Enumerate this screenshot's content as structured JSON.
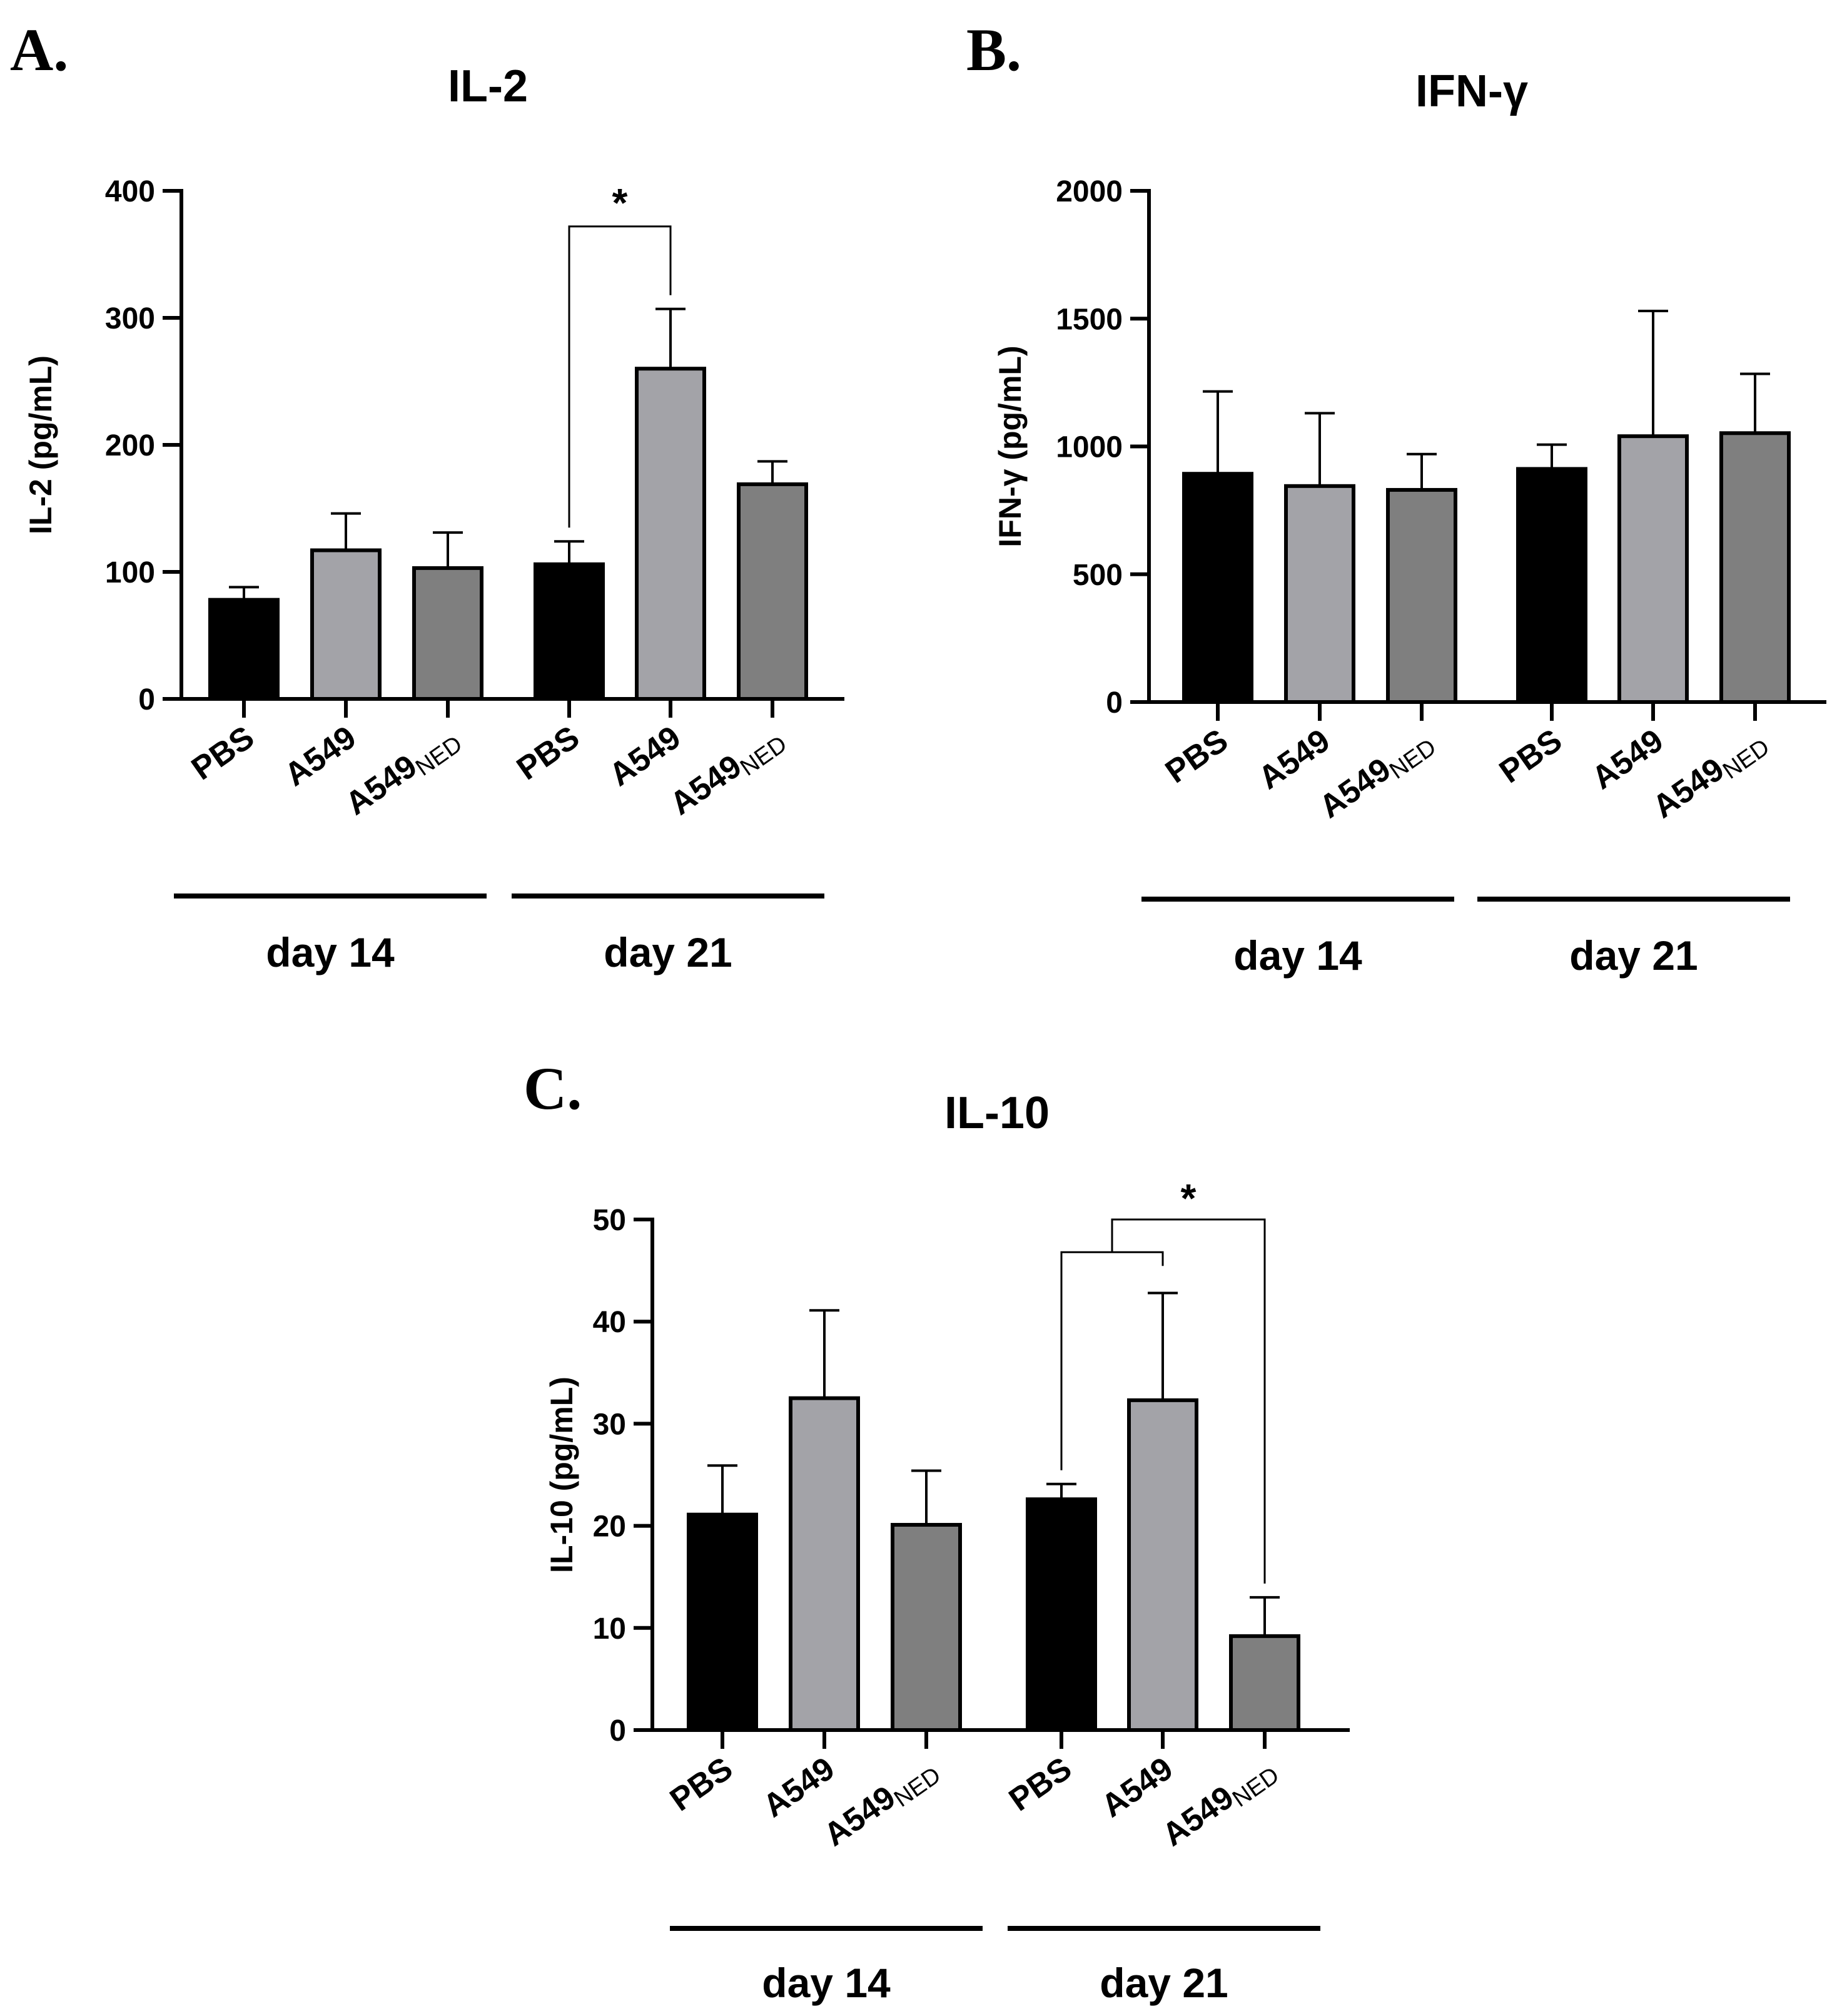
{
  "chart_data": [
    {
      "type": "bar",
      "panel": "A.",
      "title": "IL-2",
      "ylabel": "IL-2 (pg/mL)",
      "xlabel": "",
      "ylim": [
        0,
        400
      ],
      "yticks": [
        0,
        100,
        200,
        300,
        400
      ],
      "groups": [
        "day 14",
        "day 21"
      ],
      "categories": [
        {
          "label": "PBS",
          "sub": ""
        },
        {
          "label": "A549",
          "sub": ""
        },
        {
          "label": "A549",
          "sub": "NED"
        }
      ],
      "colors": [
        "#000000",
        "#a3a3a8",
        "#7f7f7f"
      ],
      "values": [
        [
          78,
          117,
          103
        ],
        [
          106,
          260,
          169
        ]
      ],
      "errors": [
        [
          10,
          29,
          28
        ],
        [
          18,
          47,
          18
        ]
      ],
      "significance": [
        {
          "label": "*",
          "from": [
            1,
            0
          ],
          "to": [
            1,
            1
          ],
          "bracket_y": 372
        }
      ]
    },
    {
      "type": "bar",
      "panel": "B.",
      "title": "IFN-γ",
      "ylabel": "IFN-γ (pg/mL)",
      "xlabel": "",
      "ylim": [
        0,
        2000
      ],
      "yticks": [
        0,
        500,
        1000,
        1500,
        2000
      ],
      "groups": [
        "day 14",
        "day 21"
      ],
      "categories": [
        {
          "label": "PBS",
          "sub": ""
        },
        {
          "label": "A549",
          "sub": ""
        },
        {
          "label": "A549",
          "sub": "NED"
        }
      ],
      "colors": [
        "#000000",
        "#a3a3a8",
        "#7f7f7f"
      ],
      "values": [
        [
          893,
          845,
          830
        ],
        [
          912,
          1040,
          1052
        ]
      ],
      "errors": [
        [
          322,
          285,
          140
        ],
        [
          95,
          490,
          232
        ]
      ],
      "significance": []
    },
    {
      "type": "bar",
      "panel": "C.",
      "title": "IL-10",
      "ylabel": "IL-10 (pg/mL)",
      "xlabel": "",
      "ylim": [
        0,
        50
      ],
      "yticks": [
        0,
        10,
        20,
        30,
        40,
        50
      ],
      "groups": [
        "day 14",
        "day 21"
      ],
      "categories": [
        {
          "label": "PBS",
          "sub": ""
        },
        {
          "label": "A549",
          "sub": ""
        },
        {
          "label": "A549",
          "sub": "NED"
        }
      ],
      "colors": [
        "#000000",
        "#a3a3a8",
        "#7f7f7f"
      ],
      "values": [
        [
          21.1,
          32.5,
          20.1
        ],
        [
          22.6,
          32.3,
          9.2
        ]
      ],
      "errors": [
        [
          4.8,
          8.6,
          5.3
        ],
        [
          1.5,
          10.5,
          3.8
        ]
      ],
      "significance": [
        {
          "label": "*",
          "from": [
            1,
            0
          ],
          "to": [
            1,
            1
          ],
          "bracket_y": 46.8,
          "nested_to": [
            1,
            2
          ],
          "outer_y": 50
        }
      ]
    }
  ]
}
